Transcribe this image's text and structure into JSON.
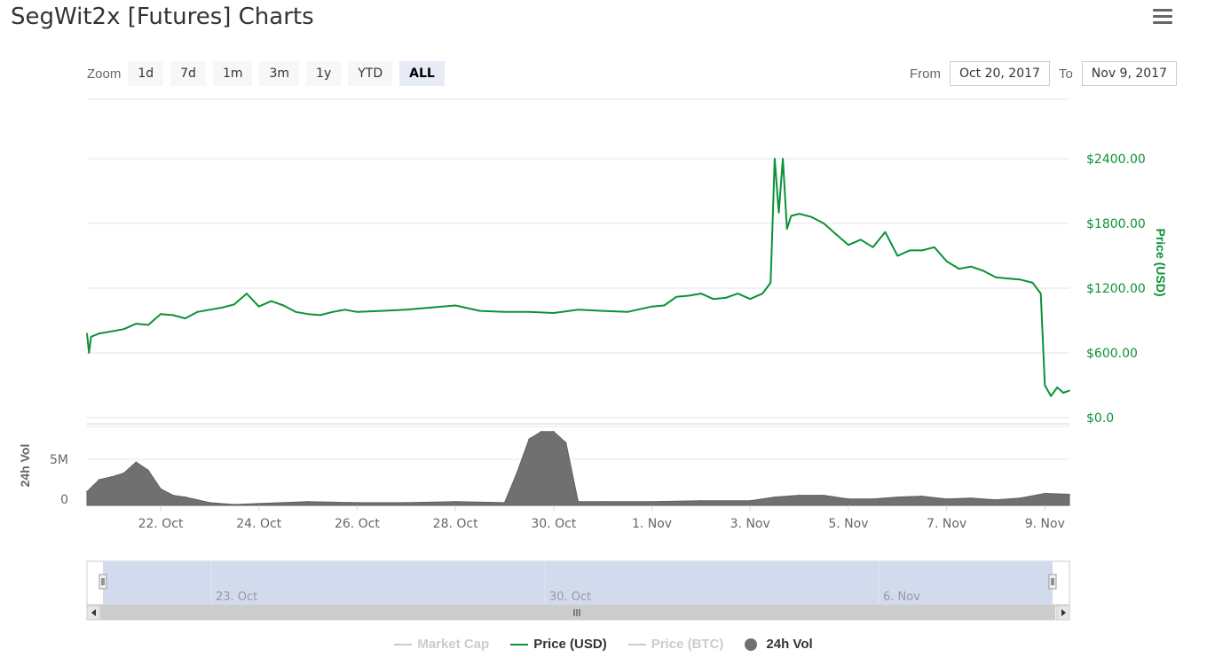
{
  "title": "SegWit2x [Futures] Charts",
  "menu_icon": "hamburger-menu-icon",
  "zoom": {
    "label": "Zoom",
    "buttons": [
      "1d",
      "7d",
      "1m",
      "3m",
      "1y",
      "YTD",
      "ALL"
    ],
    "active": "ALL"
  },
  "range": {
    "from_label": "From",
    "from_value": "Oct 20, 2017",
    "to_label": "To",
    "to_value": "Nov 9, 2017"
  },
  "colors": {
    "price": "#0b9137",
    "volume": "#707070",
    "grid": "#e6e6e6",
    "navigator_fill": "#d2dbee",
    "inactive": "#cccccc"
  },
  "navigator": {
    "labels": [
      "23. Oct",
      "30. Oct",
      "6. Nov"
    ]
  },
  "legend": [
    {
      "name": "Market Cap",
      "active": false,
      "kind": "line"
    },
    {
      "name": "Price (USD)",
      "active": true,
      "kind": "line"
    },
    {
      "name": "Price (BTC)",
      "active": false,
      "kind": "line"
    },
    {
      "name": "24h Vol",
      "active": true,
      "kind": "dot"
    }
  ],
  "chart_data": {
    "type": "line",
    "x_tick_labels": [
      "22. Oct",
      "24. Oct",
      "26. Oct",
      "28. Oct",
      "30. Oct",
      "1. Nov",
      "3. Nov",
      "5. Nov",
      "7. Nov",
      "9. Nov"
    ],
    "x_range": [
      "2017-10-20 12:00",
      "2017-11-09 12:00"
    ],
    "price": {
      "name": "Price (USD)",
      "ylabel": "Price (USD)",
      "y_ticks": [
        "$0.0",
        "$600.00",
        "$1200.00",
        "$1800.00",
        "$2400.00"
      ],
      "ylim": [
        0,
        2400
      ],
      "x": [
        "2017-10-20 12:00",
        "2017-10-20 13:00",
        "2017-10-20 14:00",
        "2017-10-20 18:00",
        "2017-10-21 00:00",
        "2017-10-21 06:00",
        "2017-10-21 12:00",
        "2017-10-21 18:00",
        "2017-10-22 00:00",
        "2017-10-22 06:00",
        "2017-10-22 12:00",
        "2017-10-22 18:00",
        "2017-10-23 00:00",
        "2017-10-23 06:00",
        "2017-10-23 12:00",
        "2017-10-23 18:00",
        "2017-10-24 00:00",
        "2017-10-24 06:00",
        "2017-10-24 12:00",
        "2017-10-24 18:00",
        "2017-10-25 00:00",
        "2017-10-25 06:00",
        "2017-10-25 12:00",
        "2017-10-25 18:00",
        "2017-10-26 00:00",
        "2017-10-26 12:00",
        "2017-10-27 00:00",
        "2017-10-27 12:00",
        "2017-10-28 00:00",
        "2017-10-28 12:00",
        "2017-10-29 00:00",
        "2017-10-29 12:00",
        "2017-10-30 00:00",
        "2017-10-30 12:00",
        "2017-10-31 00:00",
        "2017-10-31 12:00",
        "2017-11-01 00:00",
        "2017-11-01 06:00",
        "2017-11-01 12:00",
        "2017-11-01 18:00",
        "2017-11-02 00:00",
        "2017-11-02 06:00",
        "2017-11-02 12:00",
        "2017-11-02 18:00",
        "2017-11-03 00:00",
        "2017-11-03 06:00",
        "2017-11-03 10:00",
        "2017-11-03 12:00",
        "2017-11-03 14:00",
        "2017-11-03 16:00",
        "2017-11-03 18:00",
        "2017-11-03 20:00",
        "2017-11-04 00:00",
        "2017-11-04 06:00",
        "2017-11-04 12:00",
        "2017-11-04 18:00",
        "2017-11-05 00:00",
        "2017-11-05 06:00",
        "2017-11-05 12:00",
        "2017-11-05 18:00",
        "2017-11-06 00:00",
        "2017-11-06 06:00",
        "2017-11-06 12:00",
        "2017-11-06 18:00",
        "2017-11-07 00:00",
        "2017-11-07 06:00",
        "2017-11-07 12:00",
        "2017-11-07 18:00",
        "2017-11-08 00:00",
        "2017-11-08 06:00",
        "2017-11-08 12:00",
        "2017-11-08 18:00",
        "2017-11-08 22:00",
        "2017-11-09 00:00",
        "2017-11-09 03:00",
        "2017-11-09 06:00",
        "2017-11-09 09:00",
        "2017-11-09 12:00"
      ],
      "values": [
        780,
        600,
        750,
        780,
        800,
        820,
        870,
        860,
        960,
        950,
        920,
        980,
        1000,
        1020,
        1050,
        1150,
        1030,
        1080,
        1040,
        980,
        960,
        950,
        980,
        1000,
        980,
        990,
        1000,
        1020,
        1040,
        990,
        980,
        980,
        970,
        1000,
        990,
        980,
        1030,
        1040,
        1120,
        1130,
        1150,
        1100,
        1110,
        1150,
        1100,
        1150,
        1250,
        2400,
        1900,
        2400,
        1750,
        1870,
        1890,
        1860,
        1800,
        1700,
        1600,
        1650,
        1580,
        1720,
        1500,
        1550,
        1550,
        1580,
        1450,
        1380,
        1400,
        1360,
        1300,
        1290,
        1280,
        1250,
        1150,
        300,
        200,
        280,
        230,
        250
      ]
    },
    "volume": {
      "name": "24h Vol",
      "ylabel": "24h Vol",
      "y_ticks": [
        "0",
        "5M"
      ],
      "ylim": [
        0,
        9500000
      ],
      "x": [
        "2017-10-20 12:00",
        "2017-10-20 18:00",
        "2017-10-21 00:00",
        "2017-10-21 06:00",
        "2017-10-21 12:00",
        "2017-10-21 18:00",
        "2017-10-22 00:00",
        "2017-10-22 06:00",
        "2017-10-22 12:00",
        "2017-10-23 00:00",
        "2017-10-23 12:00",
        "2017-10-24 00:00",
        "2017-10-25 00:00",
        "2017-10-26 00:00",
        "2017-10-27 00:00",
        "2017-10-28 00:00",
        "2017-10-29 00:00",
        "2017-10-29 06:00",
        "2017-10-29 12:00",
        "2017-10-29 18:00",
        "2017-10-30 00:00",
        "2017-10-30 06:00",
        "2017-10-30 12:00",
        "2017-10-31 00:00",
        "2017-11-01 00:00",
        "2017-11-02 00:00",
        "2017-11-03 00:00",
        "2017-11-03 12:00",
        "2017-11-04 00:00",
        "2017-11-04 12:00",
        "2017-11-05 00:00",
        "2017-11-05 12:00",
        "2017-11-06 00:00",
        "2017-11-06 12:00",
        "2017-11-07 00:00",
        "2017-11-07 12:00",
        "2017-11-08 00:00",
        "2017-11-08 12:00",
        "2017-11-09 00:00",
        "2017-11-09 12:00"
      ],
      "values": [
        1500000,
        2800000,
        3100000,
        3500000,
        4700000,
        3800000,
        1800000,
        1100000,
        900000,
        300000,
        100000,
        200000,
        400000,
        300000,
        300000,
        400000,
        300000,
        3500000,
        7200000,
        8000000,
        8000000,
        6800000,
        400000,
        400000,
        400000,
        500000,
        500000,
        900000,
        1100000,
        1100000,
        700000,
        700000,
        900000,
        1000000,
        700000,
        800000,
        600000,
        800000,
        1300000,
        1200000
      ]
    }
  }
}
